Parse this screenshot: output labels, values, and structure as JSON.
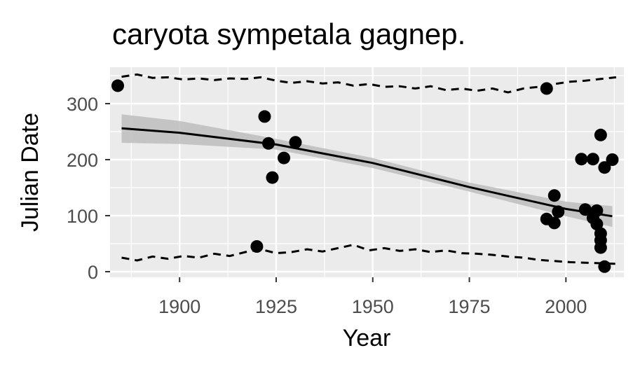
{
  "chart_data": {
    "type": "scatter",
    "title": "caryota sympetala gagnep.",
    "xlabel": "Year",
    "ylabel": "Julian Date",
    "xlim": [
      1882,
      2015
    ],
    "ylim": [
      -10,
      365
    ],
    "x_ticks": [
      1900,
      1925,
      1950,
      1975,
      2000
    ],
    "y_ticks": [
      0,
      100,
      200,
      300
    ],
    "grid": true,
    "legend": "none",
    "colors": {
      "panel": "#ebebeb",
      "grid": "#ffffff",
      "points": "#000000",
      "band": "#bdbdbd",
      "tick_text": "#4d4d4d"
    },
    "points": [
      {
        "x": 1884,
        "y": 332
      },
      {
        "x": 1920,
        "y": 45
      },
      {
        "x": 1922,
        "y": 277
      },
      {
        "x": 1923,
        "y": 229
      },
      {
        "x": 1924,
        "y": 168
      },
      {
        "x": 1927,
        "y": 203
      },
      {
        "x": 1930,
        "y": 231
      },
      {
        "x": 1995,
        "y": 327
      },
      {
        "x": 1995,
        "y": 94
      },
      {
        "x": 1997,
        "y": 136
      },
      {
        "x": 1997,
        "y": 87
      },
      {
        "x": 1998,
        "y": 107
      },
      {
        "x": 2004,
        "y": 201
      },
      {
        "x": 2005,
        "y": 111
      },
      {
        "x": 2007,
        "y": 201
      },
      {
        "x": 2007,
        "y": 96
      },
      {
        "x": 2008,
        "y": 109
      },
      {
        "x": 2008,
        "y": 85
      },
      {
        "x": 2009,
        "y": 244
      },
      {
        "x": 2009,
        "y": 68
      },
      {
        "x": 2009,
        "y": 56
      },
      {
        "x": 2009,
        "y": 43
      },
      {
        "x": 2010,
        "y": 186
      },
      {
        "x": 2010,
        "y": 9
      },
      {
        "x": 2012,
        "y": 200
      }
    ],
    "trend": {
      "x": [
        1885,
        1900,
        1925,
        1950,
        1975,
        2000,
        2012
      ],
      "y": [
        256,
        248,
        227,
        194,
        151,
        112,
        99
      ],
      "lower": [
        230,
        228,
        218,
        185,
        143,
        99,
        80
      ],
      "upper": [
        281,
        269,
        237,
        203,
        159,
        125,
        117
      ]
    },
    "upper_dashed": {
      "x": [
        1885,
        1889,
        1893,
        1897,
        1901,
        1905,
        1909,
        1913,
        1917,
        1921,
        1925,
        1929,
        1933,
        1937,
        1941,
        1945,
        1949,
        1953,
        1957,
        1961,
        1965,
        1969,
        1973,
        1977,
        1981,
        1985,
        1989,
        1993,
        1997,
        2001,
        2005,
        2009,
        2013
      ],
      "y": [
        348,
        352,
        346,
        347,
        343,
        345,
        342,
        345,
        344,
        347,
        341,
        337,
        340,
        336,
        338,
        332,
        335,
        330,
        331,
        327,
        331,
        324,
        327,
        323,
        327,
        320,
        327,
        330,
        335,
        339,
        341,
        344,
        347
      ]
    },
    "lower_dashed": {
      "x": [
        1885,
        1889,
        1893,
        1897,
        1901,
        1905,
        1909,
        1913,
        1917,
        1921,
        1925,
        1929,
        1933,
        1937,
        1941,
        1945,
        1949,
        1953,
        1957,
        1961,
        1965,
        1969,
        1973,
        1977,
        1981,
        1985,
        1989,
        1993,
        1997,
        2001,
        2005,
        2009,
        2013
      ],
      "y": [
        25,
        20,
        27,
        23,
        28,
        25,
        32,
        28,
        35,
        40,
        33,
        35,
        40,
        36,
        42,
        48,
        38,
        42,
        37,
        40,
        35,
        38,
        33,
        32,
        30,
        27,
        25,
        21,
        19,
        17,
        16,
        15,
        14
      ]
    }
  }
}
